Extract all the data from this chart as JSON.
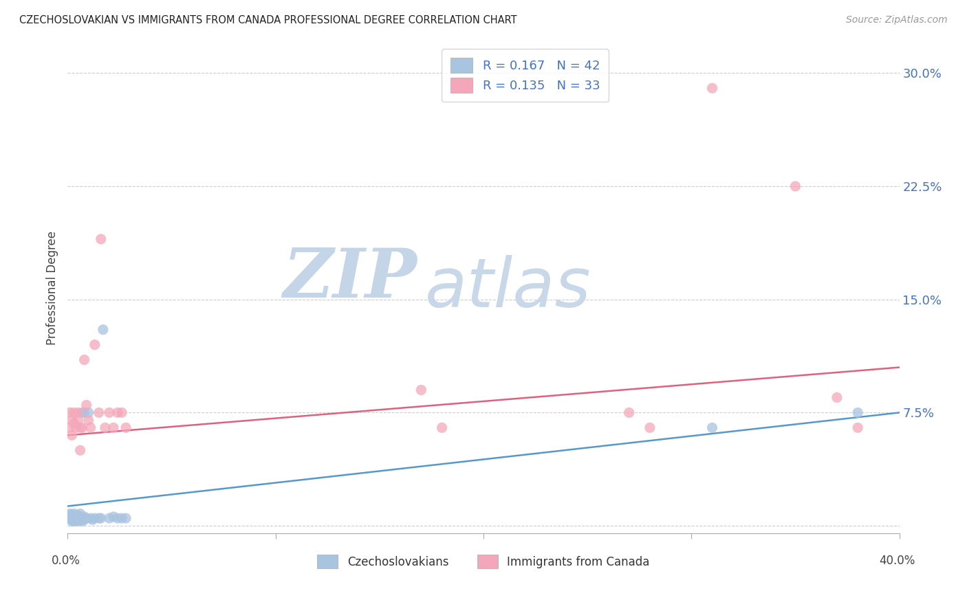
{
  "title": "CZECHOSLOVAKIAN VS IMMIGRANTS FROM CANADA PROFESSIONAL DEGREE CORRELATION CHART",
  "source": "Source: ZipAtlas.com",
  "ylabel": "Professional Degree",
  "watermark_zip": "ZIP",
  "watermark_atlas": "atlas",
  "xlim": [
    0.0,
    0.4
  ],
  "ylim": [
    -0.005,
    0.32
  ],
  "yticks": [
    0.0,
    0.075,
    0.15,
    0.225,
    0.3
  ],
  "ytick_labels": [
    "",
    "7.5%",
    "15.0%",
    "22.5%",
    "30.0%"
  ],
  "xtick_vals": [
    0.0,
    0.1,
    0.2,
    0.3,
    0.4
  ],
  "legend_r1": "R = 0.167",
  "legend_n1": "N = 42",
  "legend_r2": "R = 0.135",
  "legend_n2": "N = 33",
  "legend_label1": "Czechoslovakians",
  "legend_label2": "Immigrants from Canada",
  "color_blue": "#a8c4e0",
  "color_pink": "#f4a7b9",
  "line_color_blue": "#5599cc",
  "line_color_pink": "#e06080",
  "text_blue": "#4472c4",
  "background_color": "#ffffff",
  "grid_color": "#cccccc",
  "blue_x": [
    0.001,
    0.001,
    0.001,
    0.001,
    0.002,
    0.002,
    0.002,
    0.002,
    0.003,
    0.003,
    0.003,
    0.003,
    0.004,
    0.004,
    0.004,
    0.005,
    0.005,
    0.005,
    0.006,
    0.006,
    0.006,
    0.007,
    0.007,
    0.007,
    0.008,
    0.008,
    0.008,
    0.009,
    0.01,
    0.011,
    0.012,
    0.013,
    0.015,
    0.016,
    0.017,
    0.02,
    0.022,
    0.024,
    0.026,
    0.028,
    0.31,
    0.38
  ],
  "blue_y": [
    0.005,
    0.006,
    0.007,
    0.008,
    0.003,
    0.004,
    0.005,
    0.007,
    0.003,
    0.005,
    0.006,
    0.008,
    0.004,
    0.006,
    0.007,
    0.003,
    0.005,
    0.007,
    0.004,
    0.006,
    0.008,
    0.003,
    0.005,
    0.075,
    0.004,
    0.006,
    0.075,
    0.005,
    0.075,
    0.005,
    0.004,
    0.005,
    0.005,
    0.005,
    0.13,
    0.005,
    0.006,
    0.005,
    0.005,
    0.005,
    0.065,
    0.075
  ],
  "pink_x": [
    0.001,
    0.001,
    0.002,
    0.002,
    0.003,
    0.003,
    0.004,
    0.005,
    0.005,
    0.006,
    0.006,
    0.007,
    0.008,
    0.009,
    0.01,
    0.011,
    0.013,
    0.015,
    0.016,
    0.018,
    0.02,
    0.022,
    0.024,
    0.026,
    0.028,
    0.17,
    0.18,
    0.27,
    0.28,
    0.31,
    0.35,
    0.37,
    0.38
  ],
  "pink_y": [
    0.065,
    0.075,
    0.06,
    0.07,
    0.068,
    0.075,
    0.065,
    0.07,
    0.075,
    0.065,
    0.05,
    0.065,
    0.11,
    0.08,
    0.07,
    0.065,
    0.12,
    0.075,
    0.19,
    0.065,
    0.075,
    0.065,
    0.075,
    0.075,
    0.065,
    0.09,
    0.065,
    0.075,
    0.065,
    0.29,
    0.225,
    0.085,
    0.065
  ]
}
